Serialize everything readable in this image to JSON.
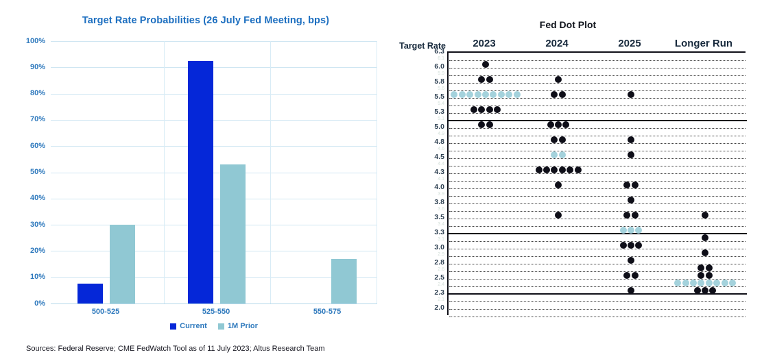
{
  "source_note": "Sources: Federal Reserve; CME FedWatch Tool as of 11 July 2023; Altus Research Team",
  "colors": {
    "current_bar": "#0527d8",
    "prior_bar": "#90c8d3",
    "dot_black": "#0e0e18",
    "dot_median_blue": "#a4d2dc",
    "left_text_blue": "#2e79bd",
    "left_title_blue": "#1d6fc0",
    "gridline_blue": "#cfe6f2",
    "dark_navy": "#17293c"
  },
  "chart_data": [
    {
      "type": "bar",
      "title": "Target Rate Probabilities (26 July Fed Meeting, bps)",
      "categories": [
        "500-525",
        "525-550",
        "550-575"
      ],
      "series": [
        {
          "name": "Current",
          "color": "#0527d8",
          "values": [
            7.5,
            92.5,
            0
          ]
        },
        {
          "name": "1M Prior",
          "color": "#90c8d3",
          "values": [
            30,
            53,
            17
          ]
        }
      ],
      "ylim": [
        0,
        100
      ],
      "ytick_labels": [
        "0%",
        "10%",
        "20%",
        "30%",
        "40%",
        "50%",
        "60%",
        "70%",
        "80%",
        "90%",
        "100%"
      ],
      "grid": true,
      "legend_position": "bottom"
    },
    {
      "type": "scatter",
      "title": "Fed Dot Plot",
      "ylabel": "Target Rate",
      "columns": [
        "2023",
        "2024",
        "2025",
        "Longer Run"
      ],
      "ylim": [
        2.0,
        6.25
      ],
      "major_ticks": [
        {
          "v": 6.25,
          "label": "6.3"
        },
        {
          "v": 6.0,
          "label": "6.0"
        },
        {
          "v": 5.75,
          "label": "5.8"
        },
        {
          "v": 5.5,
          "label": "5.5"
        },
        {
          "v": 5.25,
          "label": "5.3"
        },
        {
          "v": 5.0,
          "label": "5.0"
        },
        {
          "v": 4.75,
          "label": "4.8"
        },
        {
          "v": 4.5,
          "label": "4.5"
        },
        {
          "v": 4.25,
          "label": "4.3"
        },
        {
          "v": 4.0,
          "label": "4.0"
        },
        {
          "v": 3.75,
          "label": "3.8"
        },
        {
          "v": 3.5,
          "label": "3.5"
        },
        {
          "v": 3.25,
          "label": "3.3"
        },
        {
          "v": 3.0,
          "label": "3.0"
        },
        {
          "v": 2.75,
          "label": "2.8"
        },
        {
          "v": 2.5,
          "label": "2.5"
        },
        {
          "v": 2.25,
          "label": "2.3"
        },
        {
          "v": 2.0,
          "label": "2.0"
        }
      ],
      "minor_ticks": [
        {
          "v": 6.125,
          "label": "6.1"
        },
        {
          "v": 5.875,
          "label": "5.9"
        },
        {
          "v": 5.625,
          "label": "5.6"
        },
        {
          "v": 5.375,
          "label": "5.4"
        },
        {
          "v": 5.125,
          "label": "5.1"
        },
        {
          "v": 4.875,
          "label": "4.9"
        },
        {
          "v": 4.625,
          "label": "4.6"
        },
        {
          "v": 4.375,
          "label": "4.4"
        },
        {
          "v": 4.125,
          "label": "4.1"
        },
        {
          "v": 3.875,
          "label": "3.9"
        },
        {
          "v": 3.625,
          "label": "3.6"
        },
        {
          "v": 3.375,
          "label": "3.4"
        },
        {
          "v": 3.125,
          "label": "3.1"
        },
        {
          "v": 2.875,
          "label": "2.9"
        },
        {
          "v": 2.625,
          "label": "2.6"
        },
        {
          "v": 2.375,
          "label": "2.4"
        },
        {
          "v": 2.125,
          "label": "2.1"
        }
      ],
      "solid_lines": [
        5.125,
        3.25,
        2.25
      ],
      "dots": {
        "2023": [
          {
            "rate": 6.125,
            "count": 1,
            "median": false
          },
          {
            "rate": 5.875,
            "count": 2,
            "median": false
          },
          {
            "rate": 5.625,
            "count": 9,
            "median": true
          },
          {
            "rate": 5.375,
            "count": 4,
            "median": false
          },
          {
            "rate": 5.125,
            "count": 2,
            "median": false
          }
        ],
        "2024": [
          {
            "rate": 5.875,
            "count": 1,
            "median": false
          },
          {
            "rate": 5.625,
            "count": 2,
            "median": false
          },
          {
            "rate": 5.125,
            "count": 3,
            "median": false
          },
          {
            "rate": 4.875,
            "count": 2,
            "median": false
          },
          {
            "rate": 4.625,
            "count": 2,
            "median": true
          },
          {
            "rate": 4.375,
            "count": 6,
            "median": false
          },
          {
            "rate": 4.125,
            "count": 1,
            "median": false
          },
          {
            "rate": 3.625,
            "count": 1,
            "median": false
          }
        ],
        "2025": [
          {
            "rate": 5.625,
            "count": 1,
            "median": false
          },
          {
            "rate": 4.875,
            "count": 1,
            "median": false
          },
          {
            "rate": 4.625,
            "count": 1,
            "median": false
          },
          {
            "rate": 4.125,
            "count": 2,
            "median": false
          },
          {
            "rate": 3.875,
            "count": 1,
            "median": false
          },
          {
            "rate": 3.625,
            "count": 2,
            "median": false
          },
          {
            "rate": 3.375,
            "count": 3,
            "median": true
          },
          {
            "rate": 3.125,
            "count": 3,
            "median": false
          },
          {
            "rate": 2.875,
            "count": 1,
            "median": false
          },
          {
            "rate": 2.625,
            "count": 2,
            "median": false
          },
          {
            "rate": 2.375,
            "count": 1,
            "median": false
          }
        ],
        "Longer Run": [
          {
            "rate": 3.625,
            "count": 1,
            "median": false
          },
          {
            "rate": 3.25,
            "count": 1,
            "median": false
          },
          {
            "rate": 3.0,
            "count": 1,
            "median": false
          },
          {
            "rate": 2.75,
            "count": 2,
            "median": false
          },
          {
            "rate": 2.625,
            "count": 2,
            "median": false
          },
          {
            "rate": 2.5,
            "count": 8,
            "median": true
          },
          {
            "rate": 2.375,
            "count": 3,
            "median": false
          }
        ]
      }
    }
  ]
}
